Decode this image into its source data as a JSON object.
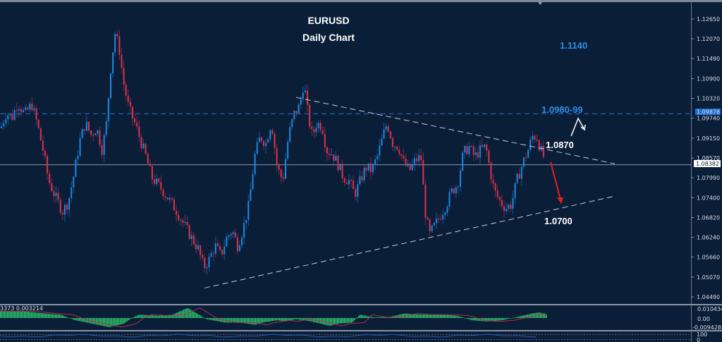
{
  "chart_data": {
    "type": "candlestick",
    "title": "EURUSD",
    "subtitle": "Daily Chart",
    "symbol": "EURUSD",
    "timeframe": "Daily",
    "ylim": [
      1.0435,
      1.1295
    ],
    "y_ticks": [
      "1.12650",
      "1.12070",
      "1.11490",
      "1.10900",
      "1.10320",
      "1.09740",
      "1.09150",
      "1.08570",
      "1.07990",
      "1.07400",
      "1.06820",
      "1.06240",
      "1.05660",
      "1.05070",
      "1.04490"
    ],
    "current_price": "1.08382",
    "highlight_price": "1.09878",
    "price_path": [
      [
        0,
        1.0945
      ],
      [
        8,
        1.099
      ],
      [
        16,
        1.0975
      ],
      [
        24,
        1.102
      ],
      [
        34,
        1.0985
      ],
      [
        44,
        1.1015
      ],
      [
        52,
        1.0955
      ],
      [
        60,
        1.088
      ],
      [
        68,
        1.079
      ],
      [
        78,
        1.074
      ],
      [
        88,
        1.07
      ],
      [
        96,
        1.073
      ],
      [
        104,
        1.081
      ],
      [
        112,
        1.0905
      ],
      [
        120,
        1.096
      ],
      [
        128,
        1.0925
      ],
      [
        136,
        1.0945
      ],
      [
        144,
        1.088
      ],
      [
        150,
        1.096
      ],
      [
        156,
        1.112
      ],
      [
        162,
        1.1225
      ],
      [
        168,
        1.118
      ],
      [
        174,
        1.108
      ],
      [
        182,
        1.1
      ],
      [
        190,
        1.096
      ],
      [
        198,
        1.091
      ],
      [
        206,
        1.086
      ],
      [
        214,
        1.08
      ],
      [
        222,
        1.078
      ],
      [
        230,
        1.076
      ],
      [
        240,
        1.073
      ],
      [
        250,
        1.07
      ],
      [
        260,
        1.066
      ],
      [
        270,
        1.0625
      ],
      [
        280,
        1.059
      ],
      [
        288,
        1.0535
      ],
      [
        296,
        1.056
      ],
      [
        304,
        1.06
      ],
      [
        312,
        1.057
      ],
      [
        320,
        1.062
      ],
      [
        328,
        1.0645
      ],
      [
        336,
        1.06
      ],
      [
        344,
        1.065
      ],
      [
        352,
        1.072
      ],
      [
        360,
        1.086
      ],
      [
        368,
        1.092
      ],
      [
        376,
        1.09
      ],
      [
        384,
        1.0965
      ],
      [
        392,
        1.083
      ],
      [
        400,
        1.079
      ],
      [
        408,
        1.092
      ],
      [
        416,
        1.0985
      ],
      [
        424,
        1.101
      ],
      [
        430,
        1.108
      ],
      [
        436,
        1.098
      ],
      [
        442,
        1.092
      ],
      [
        448,
        1.096
      ],
      [
        456,
        1.095
      ],
      [
        462,
        1.088
      ],
      [
        470,
        1.087
      ],
      [
        478,
        1.084
      ],
      [
        486,
        1.08
      ],
      [
        494,
        1.079
      ],
      [
        502,
        1.075
      ],
      [
        510,
        1.079
      ],
      [
        518,
        1.083
      ],
      [
        526,
        1.082
      ],
      [
        534,
        1.086
      ],
      [
        542,
        1.092
      ],
      [
        548,
        1.096
      ],
      [
        556,
        1.09
      ],
      [
        564,
        1.089
      ],
      [
        572,
        1.084
      ],
      [
        580,
        1.082
      ],
      [
        588,
        1.085
      ],
      [
        596,
        1.086
      ],
      [
        602,
        1.07
      ],
      [
        608,
        1.063
      ],
      [
        616,
        1.066
      ],
      [
        624,
        1.069
      ],
      [
        632,
        1.072
      ],
      [
        640,
        1.076
      ],
      [
        648,
        1.078
      ],
      [
        656,
        1.087
      ],
      [
        664,
        1.089
      ],
      [
        672,
        1.086
      ],
      [
        680,
        1.088
      ],
      [
        688,
        1.089
      ],
      [
        694,
        1.082
      ],
      [
        700,
        1.076
      ],
      [
        708,
        1.073
      ],
      [
        716,
        1.071
      ],
      [
        724,
        1.072
      ],
      [
        732,
        1.079
      ],
      [
        740,
        1.084
      ],
      [
        748,
        1.088
      ],
      [
        754,
        1.092
      ],
      [
        760,
        1.092
      ],
      [
        766,
        1.088
      ],
      [
        772,
        1.085
      ]
    ],
    "annotations": [
      {
        "text": "1.1140",
        "price": 1.114,
        "color": "#2e8ee8"
      },
      {
        "text": "1.0980-99",
        "price": 1.0988,
        "color": "#2e8ee8"
      },
      {
        "text": "1.0870",
        "price": 1.087,
        "color": "#ffffff"
      },
      {
        "text": "1.0700",
        "price": 1.07,
        "color": "#ffffff"
      }
    ],
    "trendlines": [
      {
        "name": "upper-descending",
        "from": [
          420,
          1.1035
        ],
        "to": [
          872,
          1.084
        ],
        "style": "dashed"
      },
      {
        "name": "lower-ascending",
        "from": [
          290,
          1.0475
        ],
        "to": [
          872,
          1.0745
        ],
        "style": "dashed"
      }
    ],
    "horizontal_lines": [
      {
        "price": 1.09878,
        "style": "dashed",
        "color": "#2e6fc0"
      },
      {
        "price": 1.08382,
        "style": "solid",
        "color": "#8a95a5"
      }
    ],
    "indicator_panel_1": {
      "label": "3373 0.003214",
      "y_ticks": [
        "0.010434",
        "0.00",
        "-0.009428"
      ],
      "type": "histogram+signal",
      "histogram_path": [
        [
          0,
          0.006
        ],
        [
          60,
          0.006
        ],
        [
          120,
          0.004
        ],
        [
          160,
          0.003
        ],
        [
          200,
          -0.002
        ],
        [
          260,
          -0.006
        ],
        [
          290,
          -0.008
        ],
        [
          330,
          -0.005
        ],
        [
          350,
          0.0
        ],
        [
          370,
          0.003
        ],
        [
          420,
          0.002
        ],
        [
          460,
          0.003
        ],
        [
          500,
          0.009
        ],
        [
          520,
          0.005
        ],
        [
          550,
          -0.001
        ],
        [
          600,
          -0.004
        ],
        [
          640,
          -0.004
        ],
        [
          680,
          -0.006
        ],
        [
          700,
          -0.004
        ],
        [
          740,
          -0.002
        ],
        [
          760,
          -0.003
        ],
        [
          790,
          -0.001
        ],
        [
          830,
          -0.003
        ],
        [
          880,
          -0.007
        ],
        [
          900,
          -0.005
        ],
        [
          940,
          -0.004
        ],
        [
          960,
          0.003
        ],
        [
          1000,
          0.0005
        ],
        [
          1040,
          0.001
        ],
        [
          1080,
          0.004
        ],
        [
          1120,
          0.003
        ],
        [
          1180,
          0.003
        ],
        [
          1220,
          0.002
        ],
        [
          1260,
          -0.002
        ],
        [
          1300,
          -0.003
        ],
        [
          1340,
          -0.002
        ],
        [
          1380,
          0.001
        ],
        [
          1420,
          0.004
        ],
        [
          1440,
          0.005
        ],
        [
          1460,
          0.003
        ]
      ],
      "note": "x values mapped to 0-775 px range"
    },
    "indicator_panel_2": {
      "y_ticks": [
        "100",
        "0"
      ],
      "type": "oscillator"
    }
  },
  "ui": {
    "title_line1": "EURUSD",
    "title_line2": "Daily Chart",
    "colors": {
      "background": "#0b1e38",
      "bull": "#1e88e5",
      "bear": "#e0314b",
      "trendline": "#c8ccd4",
      "resistance": "#2e6fc0",
      "label_blue": "#2e8ee8",
      "histogram": "#2ecc71",
      "signal": "#b0304a",
      "arrow_down": "#e0201e",
      "arrow_up": "#ffffff"
    }
  }
}
